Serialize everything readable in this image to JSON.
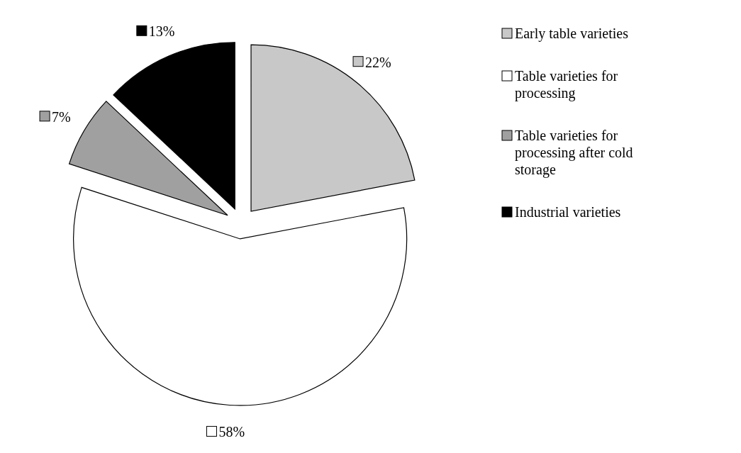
{
  "chart_data": {
    "type": "pie",
    "categories": [
      "Early table varieties",
      "Table varieties for processing",
      "Table varieties for processing after cold storage",
      "Industrial varieties"
    ],
    "values": [
      22,
      58,
      7,
      13
    ],
    "colors": [
      "#c8c8c8",
      "#ffffff",
      "#a0a0a0",
      "#000000"
    ],
    "value_labels": [
      "22%",
      "58%",
      "7%",
      "13%"
    ],
    "legend": "right"
  }
}
